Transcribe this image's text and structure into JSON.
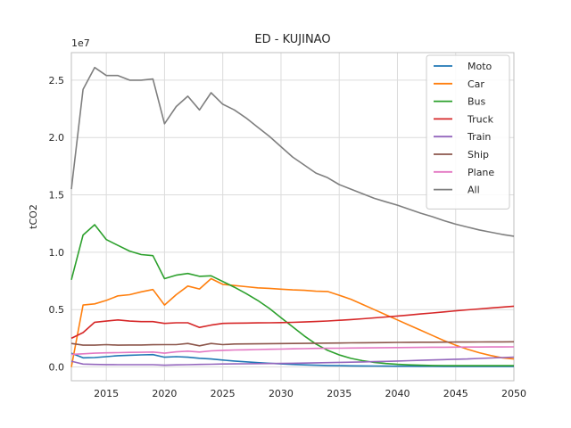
{
  "chart_data": {
    "type": "line",
    "title": "ED - KUJINAO",
    "xlabel": "",
    "ylabel": "tCO2",
    "y_offset_label": "1e7",
    "xlim": [
      2012,
      2050
    ],
    "ylim": [
      -1200000,
      27400000
    ],
    "x_ticks": [
      2015,
      2020,
      2025,
      2030,
      2035,
      2040,
      2045,
      2050
    ],
    "y_ticks": [
      0,
      5000000,
      10000000,
      15000000,
      20000000,
      25000000
    ],
    "y_tick_labels": [
      "0.0",
      "0.5",
      "1.0",
      "1.5",
      "2.0",
      "2.5"
    ],
    "grid": true,
    "legend_position": "top-right",
    "x": [
      2012,
      2013,
      2014,
      2015,
      2016,
      2017,
      2018,
      2019,
      2020,
      2021,
      2022,
      2023,
      2024,
      2025,
      2026,
      2027,
      2028,
      2029,
      2030,
      2031,
      2032,
      2033,
      2034,
      2035,
      2036,
      2037,
      2038,
      2039,
      2040,
      2041,
      2042,
      2043,
      2044,
      2045,
      2046,
      2047,
      2048,
      2049,
      2050
    ],
    "series": [
      {
        "name": "Moto",
        "color": "#1f77b4",
        "values": [
          1200000,
          800000,
          820000,
          900000,
          980000,
          1020000,
          1050000,
          1080000,
          850000,
          900000,
          850000,
          760000,
          700000,
          600000,
          520000,
          450000,
          380000,
          320000,
          270000,
          220000,
          180000,
          150000,
          130000,
          110000,
          100000,
          90000,
          80000,
          75000,
          70000,
          65000,
          60000,
          58000,
          55000,
          53000,
          50000,
          49000,
          48000,
          47000,
          46000
        ]
      },
      {
        "name": "Car",
        "color": "#ff7f0e",
        "values": [
          0,
          5400000,
          5500000,
          5800000,
          6200000,
          6300000,
          6550000,
          6750000,
          5400000,
          6300000,
          7050000,
          6800000,
          7700000,
          7200000,
          7100000,
          7000000,
          6900000,
          6850000,
          6780000,
          6720000,
          6680000,
          6600000,
          6580000,
          6250000,
          5900000,
          5450000,
          5000000,
          4550000,
          4100000,
          3650000,
          3200000,
          2750000,
          2300000,
          1900000,
          1550000,
          1250000,
          1000000,
          800000,
          700000
        ]
      },
      {
        "name": "Bus",
        "color": "#2ca02c",
        "values": [
          7600000,
          11500000,
          12400000,
          11100000,
          10600000,
          10100000,
          9800000,
          9700000,
          7700000,
          8000000,
          8150000,
          7900000,
          7950000,
          7450000,
          6950000,
          6400000,
          5800000,
          5100000,
          4300000,
          3500000,
          2700000,
          2000000,
          1450000,
          1050000,
          750000,
          550000,
          400000,
          300000,
          230000,
          180000,
          150000,
          130000,
          120000,
          115000,
          110000,
          110000,
          110000,
          110000,
          110000
        ]
      },
      {
        "name": "Truck",
        "color": "#d62728",
        "values": [
          2500000,
          3000000,
          3900000,
          4000000,
          4100000,
          4000000,
          3950000,
          3950000,
          3800000,
          3850000,
          3850000,
          3450000,
          3650000,
          3800000,
          3820000,
          3830000,
          3840000,
          3850000,
          3870000,
          3890000,
          3920000,
          3960000,
          4010000,
          4070000,
          4130000,
          4200000,
          4280000,
          4360000,
          4440000,
          4530000,
          4620000,
          4710000,
          4800000,
          4890000,
          4980000,
          5060000,
          5140000,
          5220000,
          5300000
        ]
      },
      {
        "name": "Train",
        "color": "#9467bd",
        "values": [
          500000,
          250000,
          220000,
          210000,
          200000,
          200000,
          200000,
          200000,
          150000,
          180000,
          200000,
          220000,
          240000,
          260000,
          270000,
          280000,
          290000,
          300000,
          310000,
          320000,
          340000,
          360000,
          380000,
          400000,
          420000,
          440000,
          460000,
          490000,
          520000,
          550000,
          580000,
          610000,
          640000,
          670000,
          700000,
          740000,
          780000,
          820000,
          860000
        ]
      },
      {
        "name": "Ship",
        "color": "#8c564b",
        "values": [
          2050000,
          1900000,
          1900000,
          1950000,
          1900000,
          1920000,
          1920000,
          1940000,
          1950000,
          1950000,
          2050000,
          1850000,
          2050000,
          1950000,
          2000000,
          2010000,
          2020000,
          2030000,
          2040000,
          2050000,
          2060000,
          2070000,
          2080000,
          2090000,
          2100000,
          2110000,
          2120000,
          2130000,
          2140000,
          2150000,
          2155000,
          2160000,
          2165000,
          2170000,
          2175000,
          2180000,
          2185000,
          2190000,
          2195000
        ]
      },
      {
        "name": "Plane",
        "color": "#e377c2",
        "values": [
          1100000,
          1150000,
          1200000,
          1230000,
          1250000,
          1270000,
          1280000,
          1300000,
          1200000,
          1320000,
          1380000,
          1300000,
          1400000,
          1450000,
          1480000,
          1500000,
          1520000,
          1540000,
          1560000,
          1580000,
          1600000,
          1620000,
          1630000,
          1640000,
          1650000,
          1660000,
          1670000,
          1680000,
          1690000,
          1700000,
          1710000,
          1720000,
          1725000,
          1730000,
          1735000,
          1740000,
          1745000,
          1748000,
          1750000
        ]
      },
      {
        "name": "All",
        "color": "#7f7f7f",
        "values": [
          15500000,
          24200000,
          26100000,
          25400000,
          25400000,
          25000000,
          25000000,
          25100000,
          21200000,
          22700000,
          23600000,
          22400000,
          23900000,
          22900000,
          22400000,
          21700000,
          20900000,
          20100000,
          19200000,
          18300000,
          17600000,
          16900000,
          16500000,
          15900000,
          15500000,
          15100000,
          14700000,
          14400000,
          14100000,
          13750000,
          13400000,
          13100000,
          12750000,
          12450000,
          12200000,
          11950000,
          11750000,
          11550000,
          11400000
        ]
      }
    ]
  }
}
